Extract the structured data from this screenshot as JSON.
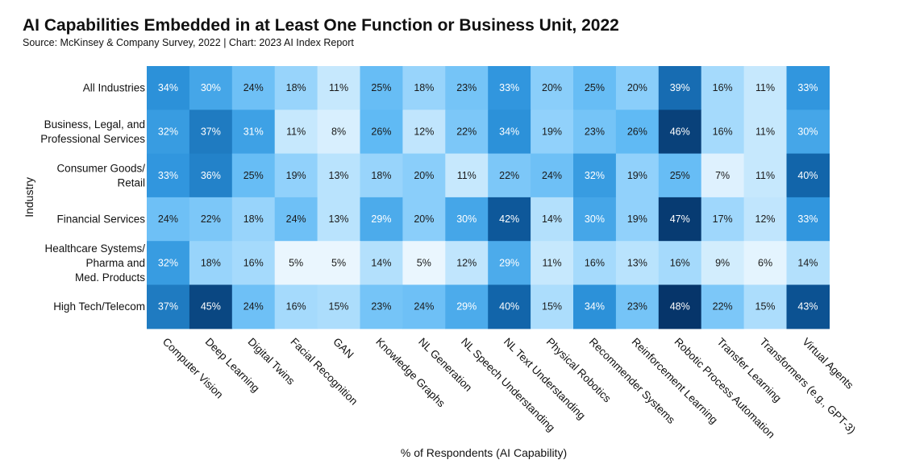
{
  "chart_data": {
    "type": "heatmap",
    "title": "AI Capabilities Embedded in at Least One Function or Business Unit, 2022",
    "subtitle": "Source: McKinsey & Company Survey, 2022 | Chart: 2023 AI Index Report",
    "xlabel": "% of Respondents (AI Capability)",
    "ylabel": "Industry",
    "value_suffix": "%",
    "columns": [
      "Computer Vision",
      "Deep Learning",
      "Digital Twins",
      "Facial Recognition",
      "GAN",
      "Knowledge Graphs",
      "NL Generation",
      "NL Speech Understanding",
      "NL Text Understanding",
      "Physical Robotics",
      "Recommender Systems",
      "Reinforcement Learning",
      "Robotic Process Automation",
      "Transfer Learning",
      "Transformers (e.g., GPT-3)",
      "Virtual Agents"
    ],
    "rows": [
      {
        "label": [
          "All Industries"
        ],
        "values": [
          34,
          30,
          24,
          18,
          11,
          25,
          18,
          23,
          33,
          20,
          25,
          20,
          39,
          16,
          11,
          33
        ]
      },
      {
        "label": [
          "Business, Legal, and",
          "Professional Services"
        ],
        "values": [
          32,
          37,
          31,
          11,
          8,
          26,
          12,
          22,
          34,
          19,
          23,
          26,
          46,
          16,
          11,
          30
        ]
      },
      {
        "label": [
          "Consumer Goods/",
          "Retail"
        ],
        "values": [
          33,
          36,
          25,
          19,
          13,
          18,
          20,
          11,
          22,
          24,
          32,
          19,
          25,
          7,
          11,
          40
        ]
      },
      {
        "label": [
          "Financial Services"
        ],
        "values": [
          24,
          22,
          18,
          24,
          13,
          29,
          20,
          30,
          42,
          14,
          30,
          19,
          47,
          17,
          12,
          33
        ]
      },
      {
        "label": [
          "Healthcare Systems/",
          "Pharma and",
          "Med. Products"
        ],
        "values": [
          32,
          18,
          16,
          5,
          5,
          14,
          5,
          12,
          29,
          11,
          16,
          13,
          16,
          9,
          6,
          14
        ]
      },
      {
        "label": [
          "High Tech/Telecom"
        ],
        "values": [
          37,
          45,
          24,
          16,
          15,
          23,
          24,
          29,
          40,
          15,
          34,
          23,
          48,
          22,
          15,
          43
        ]
      }
    ],
    "colors": [
      "#eaf6fe",
      "#bfe5fd",
      "#8fd0fb",
      "#5cb8f3",
      "#2d93dc",
      "#0f5fa3",
      "#06356a"
    ]
  }
}
